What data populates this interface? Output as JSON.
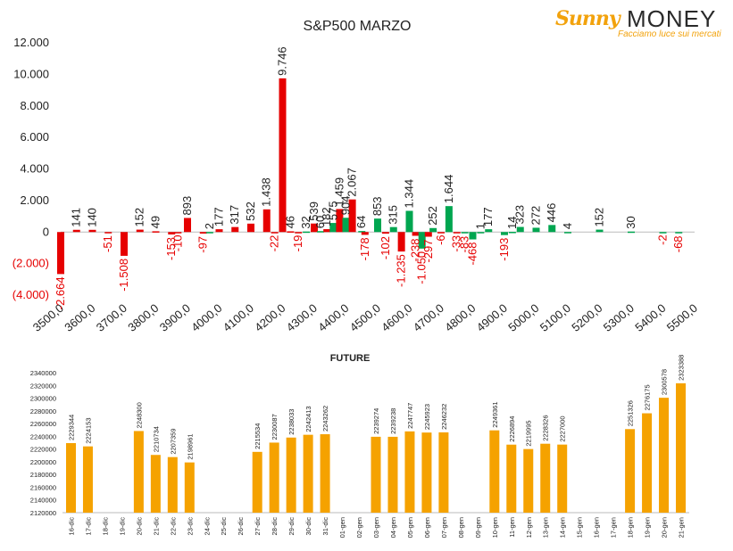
{
  "logo": {
    "brand_left": "Sunny",
    "brand_right": "MONEY",
    "tagline": "Facciamo luce sui mercati",
    "icon": "sun-icon"
  },
  "colors": {
    "negative": "#e60000",
    "positive": "#00a650",
    "future": "#f5a200",
    "axis_text": "#e60000",
    "text": "#222222"
  },
  "chart_data": [
    {
      "type": "bar",
      "title": "S&P500 MARZO",
      "xlabel": "",
      "ylabel": "",
      "ylim": [
        -4000,
        12000
      ],
      "y_ticks": [
        "12.000",
        "10.000",
        "8.000",
        "6.000",
        "4.000",
        "2.000",
        "0",
        "(2.000)",
        "(4.000)"
      ],
      "x_ticks": [
        "3500,0",
        "3600,0",
        "3700,0",
        "3800,0",
        "3900,0",
        "4000,0",
        "4100,0",
        "4200,0",
        "4300,0",
        "4400,0",
        "4500,0",
        "4600,0",
        "4700,0",
        "4800,0",
        "4900,0",
        "5000,0",
        "5100,0",
        "5200,0",
        "5300,0",
        "5400,0",
        "5500,0"
      ],
      "grid": false,
      "legend": "none",
      "series": [
        {
          "values": [
            {
              "x": 3500,
              "red": -2664
            },
            {
              "x": 3550,
              "red": 141
            },
            {
              "x": 3600,
              "red": 140
            },
            {
              "x": 3650,
              "red": -51
            },
            {
              "x": 3700,
              "red": -1508
            },
            {
              "x": 3750,
              "red": 152
            },
            {
              "x": 3800,
              "red": 49
            },
            {
              "x": 3850,
              "red": -153
            },
            {
              "x": 3870,
              "red": -10
            },
            {
              "x": 3900,
              "red": 893
            },
            {
              "x": 3950,
              "red": -97
            },
            {
              "x": 3970,
              "green": 2
            },
            {
              "x": 4000,
              "red": 177
            },
            {
              "x": 4050,
              "red": 317
            },
            {
              "x": 4100,
              "red": 532
            },
            {
              "x": 4150,
              "red": 1438
            },
            {
              "x": 4175,
              "red": -22
            },
            {
              "x": 4200,
              "red": 9746
            },
            {
              "x": 4225,
              "red": 46
            },
            {
              "x": 4250,
              "red": -19
            },
            {
              "x": 4275,
              "green": 32
            },
            {
              "x": 4300,
              "red": 539
            },
            {
              "x": 4320,
              "green": 60
            },
            {
              "x": 4340,
              "red": 182
            },
            {
              "x": 4360,
              "green": 575
            },
            {
              "x": 4380,
              "red": 1459
            },
            {
              "x": 4400,
              "green": 904
            },
            {
              "x": 4420,
              "red": 2067
            },
            {
              "x": 4450,
              "green": 64
            },
            {
              "x": 4460,
              "red": -178
            },
            {
              "x": 4500,
              "green": 853
            },
            {
              "x": 4525,
              "red": -102
            },
            {
              "x": 4550,
              "green": 315
            },
            {
              "x": 4575,
              "red": -1235
            },
            {
              "x": 4600,
              "green": 1344
            },
            {
              "x": 4620,
              "red": -238
            },
            {
              "x": 4640,
              "green": -1050
            },
            {
              "x": 4660,
              "red": -297
            },
            {
              "x": 4675,
              "green": 252
            },
            {
              "x": 4700,
              "red": -6
            },
            {
              "x": 4725,
              "green": 1644
            },
            {
              "x": 4750,
              "red": -33
            },
            {
              "x": 4775,
              "green": -83
            },
            {
              "x": 4800,
              "green": -468
            },
            {
              "x": 4825,
              "green": 1
            },
            {
              "x": 4850,
              "green": 177
            },
            {
              "x": 4900,
              "green": -193
            },
            {
              "x": 4925,
              "green": 14
            },
            {
              "x": 4950,
              "green": 323
            },
            {
              "x": 5000,
              "green": 272
            },
            {
              "x": 5050,
              "green": 446
            },
            {
              "x": 5100,
              "green": 4
            },
            {
              "x": 5200,
              "green": 152
            },
            {
              "x": 5300,
              "green": 30
            },
            {
              "x": 5400,
              "green": -2
            },
            {
              "x": 5450,
              "green": -68
            }
          ]
        }
      ],
      "data_labels": [
        {
          "x": 3500,
          "text": "-2.664",
          "neg": true
        },
        {
          "x": 3550,
          "text": "141"
        },
        {
          "x": 3600,
          "text": "140"
        },
        {
          "x": 3650,
          "text": "-51",
          "neg": true
        },
        {
          "x": 3700,
          "text": "-1.508",
          "neg": true
        },
        {
          "x": 3750,
          "text": "152"
        },
        {
          "x": 3800,
          "text": "49"
        },
        {
          "x": 3850,
          "text": "-153",
          "neg": true
        },
        {
          "x": 3870,
          "text": "-10",
          "neg": true
        },
        {
          "x": 3900,
          "text": "893"
        },
        {
          "x": 3950,
          "text": "-97",
          "neg": true
        },
        {
          "x": 3970,
          "text": "2"
        },
        {
          "x": 4000,
          "text": "177"
        },
        {
          "x": 4050,
          "text": "317"
        },
        {
          "x": 4100,
          "text": "532"
        },
        {
          "x": 4150,
          "text": "1.438"
        },
        {
          "x": 4175,
          "text": "-22",
          "neg": true
        },
        {
          "x": 4200,
          "text": "9.746"
        },
        {
          "x": 4225,
          "text": "46"
        },
        {
          "x": 4250,
          "text": "-19",
          "neg": true
        },
        {
          "x": 4275,
          "text": "32"
        },
        {
          "x": 4300,
          "text": "539"
        },
        {
          "x": 4320,
          "text": "60"
        },
        {
          "x": 4340,
          "text": "182"
        },
        {
          "x": 4360,
          "text": "575"
        },
        {
          "x": 4380,
          "text": "1.459"
        },
        {
          "x": 4400,
          "text": "904"
        },
        {
          "x": 4420,
          "text": "2.067"
        },
        {
          "x": 4450,
          "text": "64"
        },
        {
          "x": 4460,
          "text": "-178",
          "neg": true
        },
        {
          "x": 4500,
          "text": "853"
        },
        {
          "x": 4525,
          "text": "-102",
          "neg": true
        },
        {
          "x": 4550,
          "text": "315"
        },
        {
          "x": 4575,
          "text": "-1.235",
          "neg": true
        },
        {
          "x": 4600,
          "text": "1.344"
        },
        {
          "x": 4620,
          "text": "-238",
          "neg": true
        },
        {
          "x": 4640,
          "text": "-1.050",
          "neg": true
        },
        {
          "x": 4660,
          "text": "-297",
          "neg": true
        },
        {
          "x": 4675,
          "text": "252"
        },
        {
          "x": 4700,
          "text": "-6",
          "neg": true
        },
        {
          "x": 4725,
          "text": "1.644"
        },
        {
          "x": 4750,
          "text": "-33",
          "neg": true
        },
        {
          "x": 4775,
          "text": "-83",
          "neg": true
        },
        {
          "x": 4800,
          "text": "-468",
          "neg": true
        },
        {
          "x": 4825,
          "text": "1"
        },
        {
          "x": 4850,
          "text": "177"
        },
        {
          "x": 4900,
          "text": "-193",
          "neg": true
        },
        {
          "x": 4925,
          "text": "14"
        },
        {
          "x": 4950,
          "text": "323"
        },
        {
          "x": 5000,
          "text": "272"
        },
        {
          "x": 5050,
          "text": "446"
        },
        {
          "x": 5100,
          "text": "4"
        },
        {
          "x": 5200,
          "text": "152"
        },
        {
          "x": 5300,
          "text": "30"
        },
        {
          "x": 5400,
          "text": "-2",
          "neg": true
        },
        {
          "x": 5450,
          "text": "-68",
          "neg": true
        }
      ]
    },
    {
      "type": "bar",
      "title": "FUTURE",
      "xlabel": "",
      "ylabel": "",
      "ylim": [
        2120000,
        2340000
      ],
      "y_ticks": [
        "2340000",
        "2320000",
        "2300000",
        "2280000",
        "2260000",
        "2240000",
        "2220000",
        "2200000",
        "2180000",
        "2160000",
        "2140000",
        "2120000"
      ],
      "grid": false,
      "legend": "none",
      "categories": [
        "16-dic",
        "17-dic",
        "18-dic",
        "19-dic",
        "20-dic",
        "21-dic",
        "22-dic",
        "23-dic",
        "24-dic",
        "25-dic",
        "26-dic",
        "27-dic",
        "28-dic",
        "29-dic",
        "30-dic",
        "31-dic",
        "01-gen",
        "02-gen",
        "03-gen",
        "04-gen",
        "05-gen",
        "06-gen",
        "07-gen",
        "08-gen",
        "09-gen",
        "10-gen",
        "11-gen",
        "12-gen",
        "13-gen",
        "14-gen",
        "15-gen",
        "16-gen",
        "17-gen",
        "18-gen",
        "19-gen",
        "20-gen",
        "21-gen"
      ],
      "values": [
        2229344,
        2224153,
        null,
        null,
        2248300,
        2210734,
        2207359,
        2198961,
        null,
        null,
        null,
        2215534,
        2230087,
        2238033,
        2242413,
        2243262,
        null,
        null,
        2239274,
        2239238,
        2247747,
        2245923,
        2246232,
        null,
        null,
        2249361,
        2226894,
        2219995,
        2228326,
        2227000,
        null,
        null,
        null,
        2251326,
        2276175,
        2300578,
        2323388
      ],
      "value_labels": [
        "2229344",
        "2224153",
        "",
        "",
        "2248300",
        "2210734",
        "2207359",
        "2198961",
        "",
        "",
        "",
        "2215534",
        "2230087",
        "2238033",
        "2242413",
        "2243262",
        "",
        "",
        "2239274",
        "2239238",
        "2247747",
        "2245923",
        "2246232",
        "",
        "",
        "2249361",
        "2226894",
        "2219995",
        "2228326",
        "2227000",
        "",
        "",
        "",
        "2251326",
        "2276175",
        "2300578",
        "2323388"
      ]
    }
  ]
}
